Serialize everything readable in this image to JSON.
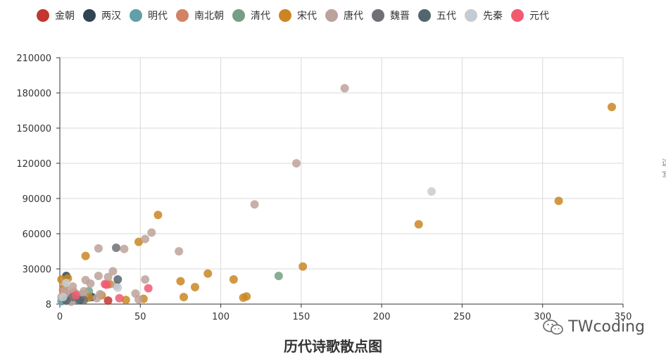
{
  "legend": [
    {
      "name": "金朝",
      "color": "#c23531"
    },
    {
      "name": "两汉",
      "color": "#2f4554"
    },
    {
      "name": "明代",
      "color": "#61a0a8"
    },
    {
      "name": "南北朝",
      "color": "#d48265"
    },
    {
      "name": "清代",
      "color": "#749f83"
    },
    {
      "name": "宋代",
      "color": "#ca8622"
    },
    {
      "name": "唐代",
      "color": "#bda29a"
    },
    {
      "name": "魏晋",
      "color": "#6e7074"
    },
    {
      "name": "五代",
      "color": "#546570"
    },
    {
      "name": "先秦",
      "color": "#c4ccd3"
    },
    {
      "name": "元代",
      "color": "#f05b72"
    }
  ],
  "chart_data": {
    "type": "scatter",
    "title": "历代诗歌散点图",
    "xlim": [
      0,
      350
    ],
    "ylim": [
      8,
      210000
    ],
    "x_ticks": [
      "0",
      "50",
      "100",
      "150",
      "200",
      "250",
      "300",
      "350"
    ],
    "y_ticks": [
      "8",
      "30000",
      "60000",
      "90000",
      "120000",
      "150000",
      "180000",
      "210000"
    ],
    "grid": true,
    "legend_position": "top",
    "series": [
      {
        "name": "金朝",
        "points": [
          [
            30,
            3000
          ],
          [
            3,
            6000
          ]
        ]
      },
      {
        "name": "两汉",
        "points": [
          [
            4,
            24000
          ],
          [
            13,
            4000
          ],
          [
            20,
            6000
          ]
        ]
      },
      {
        "name": "明代",
        "points": [
          [
            1,
            2500
          ],
          [
            8,
            4000
          ]
        ]
      },
      {
        "name": "南北朝",
        "points": [
          [
            2,
            12000
          ],
          [
            6,
            8000
          ],
          [
            9,
            10000
          ]
        ]
      },
      {
        "name": "清代",
        "points": [
          [
            136,
            24000
          ],
          [
            18,
            11000
          ],
          [
            3,
            4000
          ]
        ]
      },
      {
        "name": "宋代",
        "points": [
          [
            343,
            168000
          ],
          [
            310,
            88000
          ],
          [
            223,
            68000
          ],
          [
            151,
            32000
          ],
          [
            61,
            76000
          ],
          [
            49,
            53000
          ],
          [
            16,
            41000
          ],
          [
            92,
            26000
          ],
          [
            75,
            19500
          ],
          [
            84,
            14500
          ],
          [
            108,
            21000
          ],
          [
            116,
            6500
          ],
          [
            114,
            5500
          ],
          [
            77,
            6000
          ],
          [
            52,
            4500
          ],
          [
            41,
            3500
          ],
          [
            31,
            17000
          ],
          [
            1,
            21000
          ],
          [
            5,
            22000
          ],
          [
            3,
            15000
          ],
          [
            18,
            5500
          ],
          [
            26,
            7500
          ],
          [
            2,
            5500
          ]
        ]
      },
      {
        "name": "唐代",
        "points": [
          [
            177,
            184000
          ],
          [
            147,
            120000
          ],
          [
            121,
            85000
          ],
          [
            57,
            61000
          ],
          [
            53,
            55500
          ],
          [
            24,
            47500
          ],
          [
            40,
            47000
          ],
          [
            74,
            45000
          ],
          [
            33,
            28000
          ],
          [
            24,
            24000
          ],
          [
            30,
            23000
          ],
          [
            16,
            20500
          ],
          [
            19,
            17500
          ],
          [
            53,
            21000
          ],
          [
            47,
            9000
          ],
          [
            49,
            4000
          ],
          [
            25,
            8500
          ],
          [
            35,
            16000
          ],
          [
            15,
            11000
          ],
          [
            8,
            15000
          ],
          [
            11,
            8000
          ],
          [
            6,
            9500
          ],
          [
            3,
            11500
          ],
          [
            1,
            6000
          ],
          [
            23,
            5000
          ],
          [
            10,
            4000
          ],
          [
            14,
            8500
          ],
          [
            7,
            2000
          ]
        ]
      },
      {
        "name": "魏晋",
        "points": [
          [
            35,
            48000
          ],
          [
            15,
            3500
          ],
          [
            8,
            6000
          ]
        ]
      },
      {
        "name": "五代",
        "points": [
          [
            36,
            21000
          ],
          [
            12,
            3500
          ],
          [
            4,
            3000
          ]
        ]
      },
      {
        "name": "先秦",
        "points": [
          [
            231,
            96000
          ],
          [
            36,
            14000
          ],
          [
            4,
            18000
          ],
          [
            2,
            6000
          ]
        ]
      },
      {
        "name": "元代",
        "points": [
          [
            28,
            17000
          ],
          [
            55,
            13500
          ],
          [
            37,
            5000
          ],
          [
            10,
            7500
          ],
          [
            29,
            16500
          ]
        ]
      }
    ]
  },
  "watermark": {
    "text": "TWcoding",
    "icon": "wechat-icon"
  },
  "edge_text": [
    "这",
    "写"
  ]
}
